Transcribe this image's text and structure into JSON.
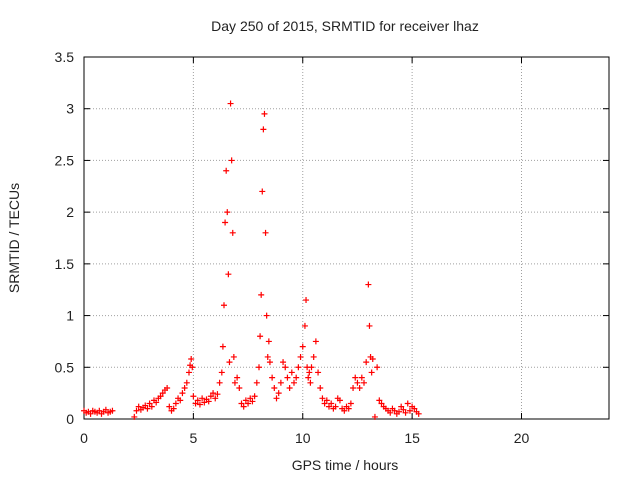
{
  "chart_data": {
    "type": "scatter",
    "title": "Day 250 of 2015, SRMTID for receiver lhaz",
    "xlabel": "GPS time / hours",
    "ylabel": "SRMTID / TECUs",
    "xlim": [
      0,
      24
    ],
    "ylim": [
      0,
      3.5
    ],
    "xticks": [
      0,
      5,
      10,
      15,
      20
    ],
    "yticks": [
      0,
      0.5,
      1,
      1.5,
      2,
      2.5,
      3,
      3.5
    ],
    "grid": true,
    "marker": "plus",
    "marker_color": "#ff0000",
    "series": [
      {
        "x": [
          0.0,
          0.1,
          0.2,
          0.3,
          0.4,
          0.5,
          0.6,
          0.7,
          0.8,
          0.9,
          1.0,
          1.1,
          1.2,
          1.3,
          2.3,
          2.4,
          2.5,
          2.6,
          2.7,
          2.8,
          2.9,
          3.0,
          3.1,
          3.2,
          3.3,
          3.4,
          3.5,
          3.6,
          3.7,
          3.8,
          3.9,
          4.0,
          4.1,
          4.2,
          4.3,
          4.4,
          4.5,
          4.6,
          4.7,
          4.8,
          4.85,
          4.9,
          4.95,
          5.0,
          5.1,
          5.2,
          5.3,
          5.4,
          5.5,
          5.6,
          5.7,
          5.8,
          5.9,
          6.0,
          6.1,
          6.2,
          6.3,
          6.35,
          6.4,
          6.45,
          6.5,
          6.55,
          6.6,
          6.65,
          6.7,
          6.75,
          6.8,
          6.85,
          6.9,
          7.0,
          7.1,
          7.2,
          7.3,
          7.4,
          7.5,
          7.6,
          7.7,
          7.8,
          7.9,
          8.0,
          8.05,
          8.1,
          8.15,
          8.2,
          8.25,
          8.3,
          8.35,
          8.4,
          8.45,
          8.5,
          8.6,
          8.7,
          8.8,
          8.9,
          9.0,
          9.1,
          9.2,
          9.3,
          9.4,
          9.5,
          9.6,
          9.7,
          9.8,
          9.9,
          10.0,
          10.1,
          10.15,
          10.2,
          10.25,
          10.3,
          10.35,
          10.4,
          10.5,
          10.6,
          10.7,
          10.8,
          10.9,
          11.0,
          11.1,
          11.2,
          11.3,
          11.4,
          11.5,
          11.6,
          11.7,
          11.8,
          11.9,
          12.0,
          12.1,
          12.2,
          12.3,
          12.4,
          12.5,
          12.6,
          12.7,
          12.8,
          12.9,
          13.0,
          13.05,
          13.1,
          13.15,
          13.2,
          13.3,
          13.4,
          13.5,
          13.6,
          13.7,
          13.8,
          13.9,
          14.0,
          14.1,
          14.2,
          14.3,
          14.4,
          14.5,
          14.6,
          14.7,
          14.8,
          14.9,
          15.0,
          15.1,
          15.2,
          15.3
        ],
        "y": [
          0.08,
          0.06,
          0.07,
          0.05,
          0.08,
          0.07,
          0.06,
          0.08,
          0.05,
          0.07,
          0.09,
          0.06,
          0.07,
          0.08,
          0.02,
          0.08,
          0.12,
          0.09,
          0.11,
          0.13,
          0.1,
          0.15,
          0.12,
          0.18,
          0.16,
          0.2,
          0.22,
          0.25,
          0.28,
          0.3,
          0.12,
          0.08,
          0.1,
          0.15,
          0.2,
          0.18,
          0.25,
          0.3,
          0.35,
          0.45,
          0.52,
          0.58,
          0.5,
          0.22,
          0.15,
          0.18,
          0.14,
          0.2,
          0.16,
          0.19,
          0.17,
          0.22,
          0.25,
          0.2,
          0.24,
          0.35,
          0.45,
          0.7,
          1.1,
          1.9,
          2.4,
          2.0,
          1.4,
          0.55,
          3.05,
          2.5,
          1.8,
          0.6,
          0.35,
          0.4,
          0.3,
          0.15,
          0.12,
          0.18,
          0.15,
          0.2,
          0.17,
          0.22,
          0.35,
          0.5,
          0.8,
          1.2,
          2.2,
          2.8,
          2.95,
          1.8,
          1.0,
          0.6,
          0.75,
          0.55,
          0.4,
          0.3,
          0.2,
          0.25,
          0.35,
          0.55,
          0.5,
          0.4,
          0.3,
          0.45,
          0.35,
          0.4,
          0.5,
          0.6,
          0.7,
          0.9,
          1.15,
          0.5,
          0.4,
          0.45,
          0.35,
          0.5,
          0.6,
          0.75,
          0.45,
          0.3,
          0.2,
          0.15,
          0.18,
          0.12,
          0.15,
          0.1,
          0.12,
          0.2,
          0.18,
          0.1,
          0.08,
          0.12,
          0.1,
          0.15,
          0.3,
          0.4,
          0.35,
          0.3,
          0.4,
          0.35,
          0.55,
          1.3,
          0.9,
          0.6,
          0.45,
          0.58,
          0.02,
          0.5,
          0.18,
          0.15,
          0.12,
          0.1,
          0.08,
          0.06,
          0.1,
          0.08,
          0.05,
          0.07,
          0.12,
          0.09,
          0.06,
          0.15,
          0.08,
          0.12,
          0.1,
          0.07,
          0.05
        ]
      }
    ]
  }
}
